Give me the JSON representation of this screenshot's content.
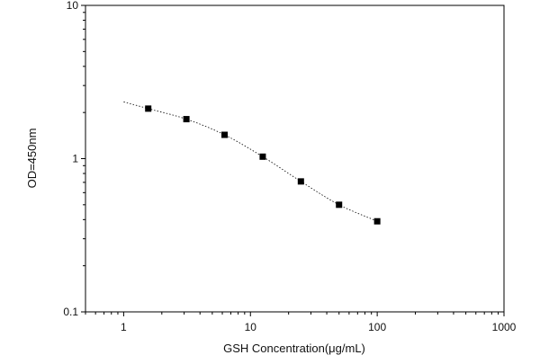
{
  "chart_data": {
    "type": "scatter",
    "xlabel": "GSH Concentration(μg/mL)",
    "ylabel": "OD=450nm",
    "x_scale": "log",
    "y_scale": "log",
    "xlim": [
      0.5,
      1000
    ],
    "ylim": [
      0.1,
      10
    ],
    "x_major_ticks": [
      1,
      10,
      100,
      1000
    ],
    "x_tick_labels": [
      "1",
      "10",
      "100",
      "1000"
    ],
    "y_major_ticks": [
      0.1,
      1,
      10
    ],
    "y_tick_labels": [
      "0.1",
      "1",
      "10"
    ],
    "grid": false,
    "series": [
      {
        "marker": "square",
        "color": "#000000",
        "x": [
          1.5625,
          3.125,
          6.25,
          12.5,
          25,
          50,
          100
        ],
        "y": [
          2.12,
          1.81,
          1.43,
          1.03,
          0.71,
          0.5,
          0.39
        ]
      }
    ],
    "fit_curve": {
      "style": "dotted",
      "color": "#000000",
      "x_range": [
        1.0,
        100
      ]
    }
  }
}
